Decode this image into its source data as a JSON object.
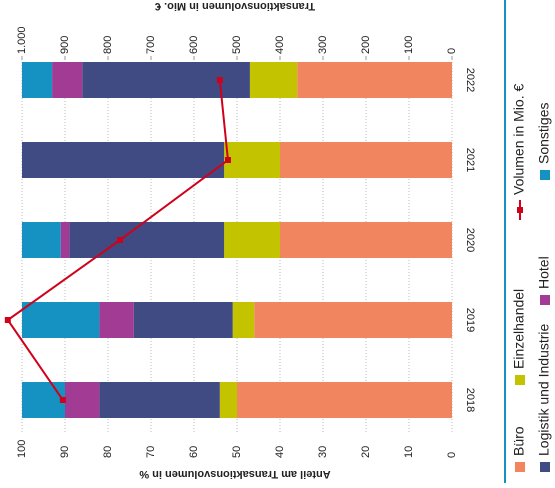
{
  "chart_data": {
    "type": "bar",
    "stacked": true,
    "title": "Transaktionsvolumen in Mio. €",
    "ylabel": "Anteil am Transaktionsvolumen in %",
    "categories": [
      "2018",
      "2019",
      "2020",
      "2021",
      "2022"
    ],
    "series": [
      {
        "name": "Büro",
        "color": "#f0855f",
        "values": [
          50,
          46,
          40,
          40,
          36
        ]
      },
      {
        "name": "Einzelhandel",
        "color": "#c3c300",
        "values": [
          4,
          5,
          13,
          13,
          11
        ]
      },
      {
        "name": "Logistik und Industrie",
        "color": "#3f4b82",
        "values": [
          28,
          23,
          36,
          47,
          39
        ]
      },
      {
        "name": "Hotel",
        "color": "#a23b93",
        "values": [
          8,
          8,
          2,
          0,
          7
        ]
      },
      {
        "name": "Sonstiges",
        "color": "#1591c2",
        "values": [
          10,
          18,
          9,
          0,
          7
        ]
      },
      {
        "name": "Volumen in Mio. €",
        "color": "#d0021b",
        "type": "line",
        "axis": "y2",
        "values": [
          905,
          1033,
          772,
          521,
          540
        ]
      }
    ],
    "ylim": [
      0,
      100
    ],
    "yticks": [
      0,
      10,
      20,
      30,
      40,
      50,
      60,
      70,
      80,
      90,
      100
    ],
    "y2lim": [
      0,
      1000
    ],
    "y2ticks": [
      0,
      100,
      200,
      300,
      400,
      500,
      600,
      700,
      800,
      900,
      {
        "value": 1000,
        "label": "1.000"
      }
    ],
    "grid": true
  }
}
